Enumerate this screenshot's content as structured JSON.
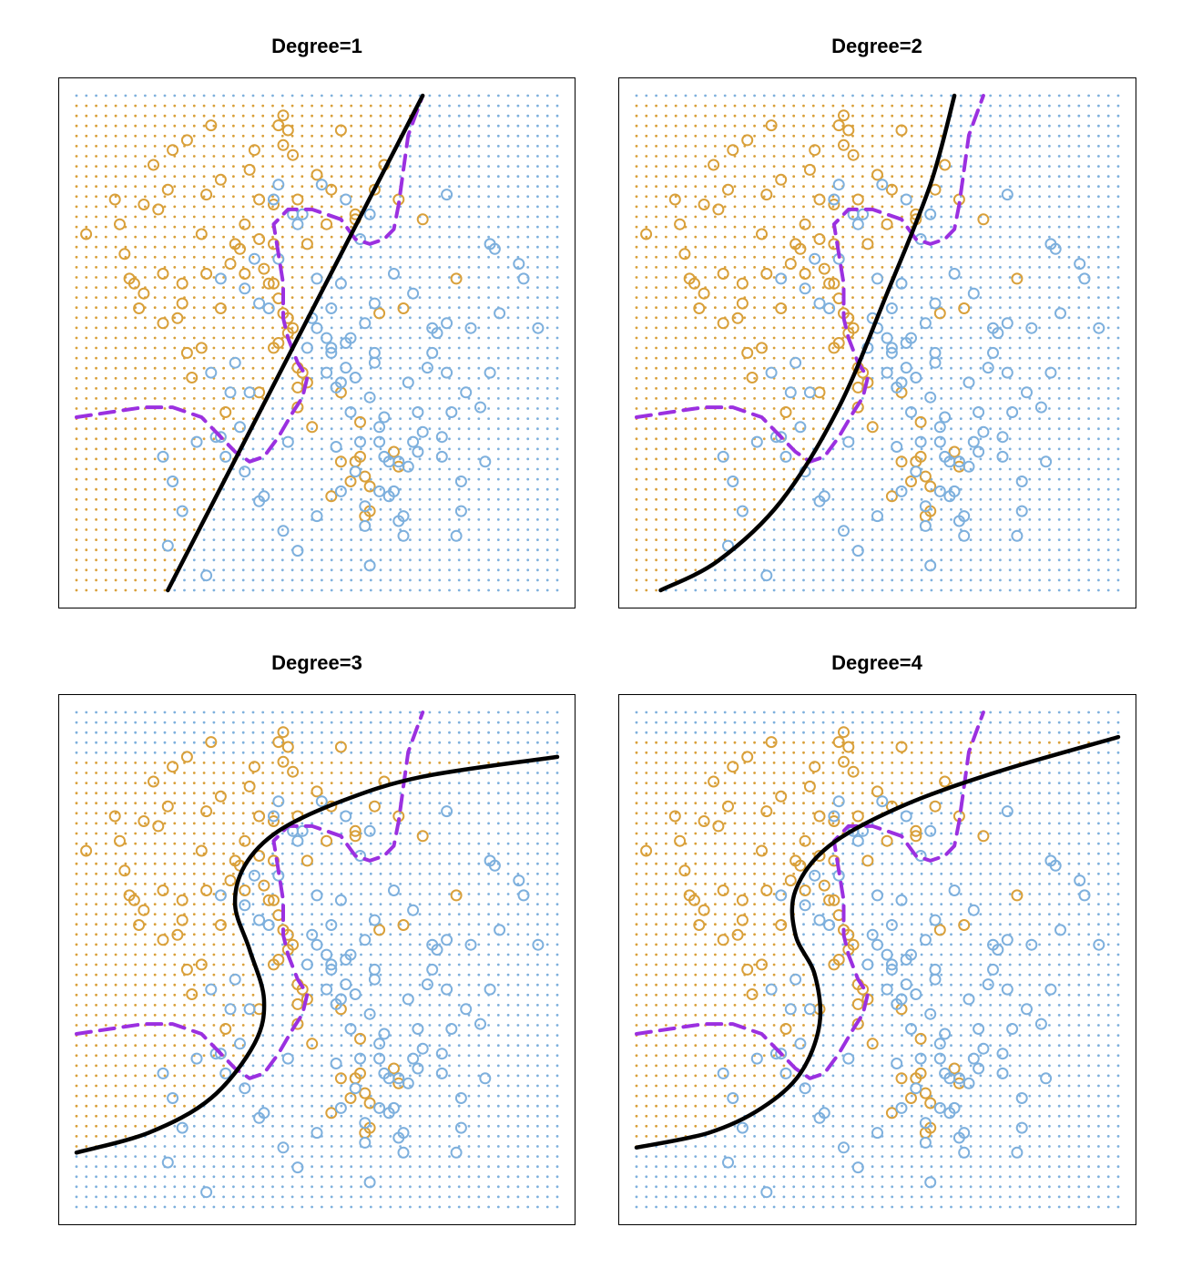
{
  "colors": {
    "orange": "#d9a03a",
    "blue": "#7eb0dd",
    "bayes_boundary": "#9b30e0",
    "fitted_boundary": "#000000",
    "frame": "#000000"
  },
  "chart_data": [
    {
      "type": "scatter",
      "title": "Degree=1",
      "xlabel": "",
      "ylabel": "",
      "xlim": [
        0,
        1
      ],
      "ylim": [
        0,
        1
      ],
      "grid": false,
      "fitted_boundary": {
        "kind": "line",
        "points": [
          [
            0.19,
            0.0
          ],
          [
            0.72,
            1.0
          ]
        ]
      }
    },
    {
      "type": "scatter",
      "title": "Degree=2",
      "xlabel": "",
      "ylabel": "",
      "xlim": [
        0,
        1
      ],
      "ylim": [
        0,
        1
      ],
      "grid": false,
      "fitted_boundary": {
        "kind": "curve",
        "points": [
          [
            0.05,
            0.0
          ],
          [
            0.17,
            0.06
          ],
          [
            0.3,
            0.18
          ],
          [
            0.42,
            0.37
          ],
          [
            0.52,
            0.6
          ],
          [
            0.61,
            0.82
          ],
          [
            0.66,
            1.0
          ]
        ]
      }
    },
    {
      "type": "scatter",
      "title": "Degree=3",
      "xlabel": "",
      "ylabel": "",
      "xlim": [
        0,
        1
      ],
      "ylim": [
        0,
        1
      ],
      "grid": false,
      "fitted_boundary": {
        "kind": "curve",
        "points": [
          [
            0.0,
            0.11
          ],
          [
            0.15,
            0.15
          ],
          [
            0.28,
            0.22
          ],
          [
            0.37,
            0.33
          ],
          [
            0.39,
            0.42
          ],
          [
            0.36,
            0.52
          ],
          [
            0.33,
            0.61
          ],
          [
            0.35,
            0.69
          ],
          [
            0.42,
            0.76
          ],
          [
            0.55,
            0.82
          ],
          [
            0.72,
            0.87
          ],
          [
            1.0,
            0.91
          ]
        ]
      }
    },
    {
      "type": "scatter",
      "title": "Degree=4",
      "xlabel": "",
      "ylabel": "",
      "xlim": [
        0,
        1
      ],
      "ylim": [
        0,
        1
      ],
      "grid": false,
      "fitted_boundary": {
        "kind": "curve",
        "points": [
          [
            0.0,
            0.12
          ],
          [
            0.15,
            0.15
          ],
          [
            0.26,
            0.2
          ],
          [
            0.34,
            0.27
          ],
          [
            0.38,
            0.37
          ],
          [
            0.37,
            0.47
          ],
          [
            0.33,
            0.55
          ],
          [
            0.33,
            0.64
          ],
          [
            0.4,
            0.73
          ],
          [
            0.55,
            0.81
          ],
          [
            0.75,
            0.88
          ],
          [
            1.0,
            0.95
          ]
        ]
      }
    }
  ]
}
